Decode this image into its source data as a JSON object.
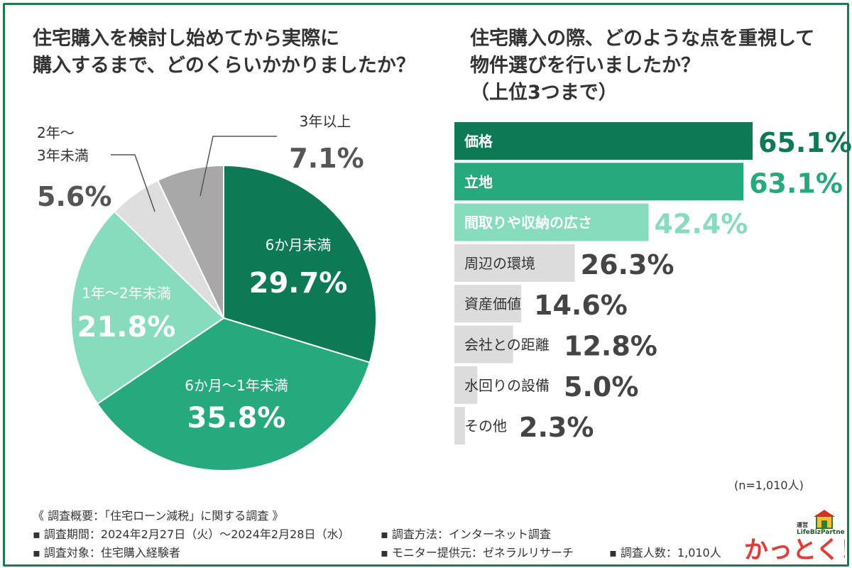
{
  "pie_question": [
    "住宅購入を検討し始めてから実際に",
    "購入するまで、どのくらいかかりましたか？"
  ],
  "bar_question": [
    "住宅購入の際、どのような点を重視して",
    "物件選びを行いましたか？",
    "（上位3つまで）"
  ],
  "sample_size": "(n=1,010人)",
  "colors": {
    "frame": "#1f7a4d",
    "dark_green": "#0d7a55",
    "mid_green": "#26a97c",
    "light_green": "#86dcbd",
    "light_gray": "#dedede",
    "gray": "#a8a8a8",
    "bar_gray": "#dcdcdc",
    "text": "#333333"
  },
  "chart_data": [
    {
      "type": "pie",
      "slices": [
        {
          "label": "6か月未満",
          "value": 29.7,
          "display": "29.7%"
        },
        {
          "label": "6か月～1年未満",
          "value": 35.8,
          "display": "35.8%"
        },
        {
          "label": "1年～2年未満",
          "value": 21.8,
          "display": "21.8%"
        },
        {
          "label": "2年～\n3年未満",
          "value": 5.6,
          "display": "5.6%"
        },
        {
          "label": "3年以上",
          "value": 7.1,
          "display": "7.1%"
        }
      ]
    },
    {
      "type": "bar",
      "orientation": "horizontal",
      "categories": [
        "価格",
        "立地",
        "間取りや収納の広さ",
        "周辺の環境",
        "資産価値",
        "会社との距離",
        "水回りの設備",
        "その他"
      ],
      "values": [
        65.1,
        63.1,
        42.4,
        26.3,
        14.6,
        12.8,
        5.0,
        2.3
      ],
      "value_labels": [
        "65.1%",
        "63.1%",
        "42.4%",
        "26.3%",
        "14.6%",
        "12.8%",
        "5.0%",
        "2.3%"
      ]
    }
  ],
  "survey": {
    "overview": "《 調査概要：「住宅ローン減税」に関する調査 》",
    "period": "▪ 調査期間：2024年2月27日（火）～2024年2月28日（水）",
    "method": "▪ 調査方法：インターネット調査",
    "target": "▪ 調査対象：住宅購入経験者",
    "monitor": "▪ モニター提供元：ゼネラルリサーチ",
    "count": "▪ 調査人数：1,010人"
  },
  "logo": {
    "small_text": "運営",
    "brand": "LifeBizPartners",
    "main": "かっとく！"
  }
}
